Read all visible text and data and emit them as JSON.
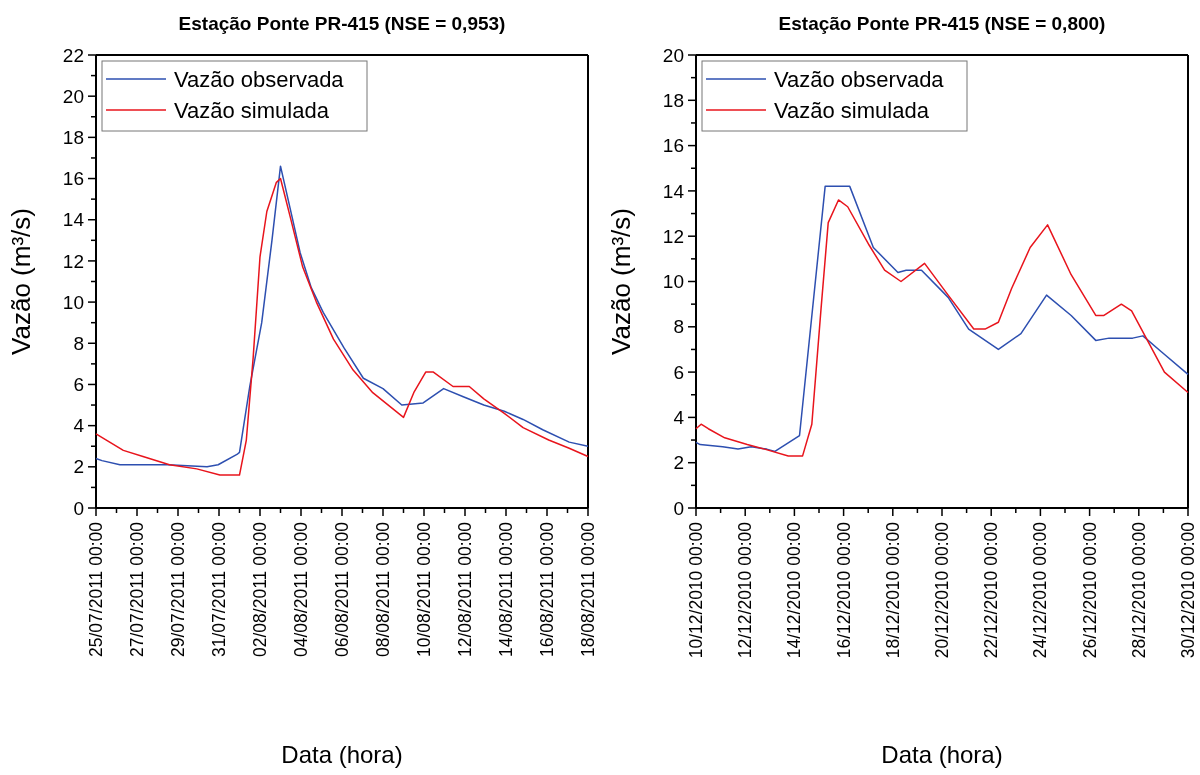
{
  "chart_data": [
    {
      "type": "line",
      "title": "Estação Ponte PR-415 (NSE = 0,953)",
      "xlabel": "Data (hora)",
      "ylabel": "Vazão (m³/s)",
      "legend": "top left",
      "grid": false,
      "xlim": [
        "2011-07-25T00:00",
        "2011-08-18T00:00"
      ],
      "xticks": [
        {
          "value": "2011-07-25T00:00",
          "label": "25/07/2011 00:00"
        },
        {
          "value": "2011-07-26T00:00",
          "label": null
        },
        {
          "value": "2011-07-27T00:00",
          "label": "27/07/2011 00:00"
        },
        {
          "value": "2011-07-28T00:00",
          "label": null
        },
        {
          "value": "2011-07-29T00:00",
          "label": "29/07/2011 00:00"
        },
        {
          "value": "2011-07-30T00:00",
          "label": null
        },
        {
          "value": "2011-07-31T00:00",
          "label": "31/07/2011 00:00"
        },
        {
          "value": "2011-08-01T00:00",
          "label": null
        },
        {
          "value": "2011-08-02T00:00",
          "label": "02/08/2011 00:00"
        },
        {
          "value": "2011-08-03T00:00",
          "label": null
        },
        {
          "value": "2011-08-04T00:00",
          "label": "04/08/2011 00:00"
        },
        {
          "value": "2011-08-05T00:00",
          "label": null
        },
        {
          "value": "2011-08-06T00:00",
          "label": "06/08/2011 00:00"
        },
        {
          "value": "2011-08-07T00:00",
          "label": null
        },
        {
          "value": "2011-08-08T00:00",
          "label": "08/08/2011 00:00"
        },
        {
          "value": "2011-08-09T00:00",
          "label": null
        },
        {
          "value": "2011-08-10T00:00",
          "label": "10/08/2011 00:00"
        },
        {
          "value": "2011-08-11T00:00",
          "label": null
        },
        {
          "value": "2011-08-12T00:00",
          "label": "12/08/2011 00:00"
        },
        {
          "value": "2011-08-13T00:00",
          "label": null
        },
        {
          "value": "2011-08-14T00:00",
          "label": "14/08/2011 00:00"
        },
        {
          "value": "2011-08-15T00:00",
          "label": null
        },
        {
          "value": "2011-08-16T00:00",
          "label": "16/08/2011 00:00"
        },
        {
          "value": "2011-08-17T00:00",
          "label": null
        },
        {
          "value": "2011-08-18T00:00",
          "label": "18/08/2011 00:00"
        }
      ],
      "ylim": [
        0,
        22
      ],
      "yticks": [
        0,
        {
          "value": 1,
          "label": null
        },
        2,
        {
          "value": 3,
          "label": null
        },
        4,
        {
          "value": 5,
          "label": null
        },
        6,
        {
          "value": 7,
          "label": null
        },
        8,
        {
          "value": 9,
          "label": null
        },
        10,
        {
          "value": 11,
          "label": null
        },
        12,
        {
          "value": 13,
          "label": null
        },
        14,
        {
          "value": 15,
          "label": null
        },
        16,
        {
          "value": 17,
          "label": null
        },
        18,
        {
          "value": 19,
          "label": null
        },
        20,
        {
          "value": 21,
          "label": null
        },
        22
      ],
      "series": [
        {
          "name": "Vazão observada",
          "color": "#2d4fb0",
          "x": [
            "2011-07-25T00:00",
            "2011-07-25T07:00",
            "2011-07-26T04:00",
            "2011-07-28T12:00",
            "2011-07-30T10:00",
            "2011-07-30T23:00",
            "2011-07-31T21:00",
            "2011-08-01T00:00",
            "2011-08-01T12:00",
            "2011-08-02T02:00",
            "2011-08-02T14:00",
            "2011-08-03T00:00",
            "2011-08-03T11:00",
            "2011-08-03T23:00",
            "2011-08-04T12:00",
            "2011-08-05T02:00",
            "2011-08-06T02:00",
            "2011-08-07T01:00",
            "2011-08-08T00:00",
            "2011-08-08T22:00",
            "2011-08-09T23:00",
            "2011-08-10T23:00",
            "2011-08-11T22:00",
            "2011-08-12T22:00",
            "2011-08-13T22:00",
            "2011-08-14T20:00",
            "2011-08-15T19:00",
            "2011-08-17T02:00",
            "2011-08-18T00:00"
          ],
          "values": [
            2.4,
            2.3,
            2.1,
            2.1,
            2.0,
            2.1,
            2.6,
            2.7,
            5.9,
            9.0,
            13.0,
            16.6,
            14.6,
            12.4,
            10.7,
            9.5,
            7.8,
            6.3,
            5.8,
            5.0,
            5.1,
            5.8,
            5.4,
            5.0,
            4.7,
            4.3,
            3.8,
            3.2,
            3.0
          ]
        },
        {
          "name": "Vazão simulada",
          "color": "#e8141c",
          "x": [
            "2011-07-25T00:00",
            "2011-07-25T16:00",
            "2011-07-26T08:00",
            "2011-07-27T07:00",
            "2011-07-28T14:00",
            "2011-07-29T22:00",
            "2011-07-31T01:00",
            "2011-08-01T00:00",
            "2011-08-01T08:00",
            "2011-08-01T16:00",
            "2011-08-02T00:00",
            "2011-08-02T08:00",
            "2011-08-02T19:00",
            "2011-08-03T00:00",
            "2011-08-03T11:00",
            "2011-08-04T02:00",
            "2011-08-04T18:00",
            "2011-08-05T14:00",
            "2011-08-06T13:00",
            "2011-08-07T12:00",
            "2011-08-09T00:00",
            "2011-08-09T12:00",
            "2011-08-10T02:00",
            "2011-08-10T11:00",
            "2011-08-11T10:00",
            "2011-08-12T05:00",
            "2011-08-12T22:00",
            "2011-08-13T22:00",
            "2011-08-14T20:00",
            "2011-08-16T02:00",
            "2011-08-17T02:00",
            "2011-08-18T00:00"
          ],
          "values": [
            3.6,
            3.2,
            2.8,
            2.5,
            2.1,
            1.9,
            1.6,
            1.6,
            3.3,
            7.3,
            12.2,
            14.4,
            15.8,
            16.0,
            14.2,
            11.7,
            10.0,
            8.2,
            6.7,
            5.6,
            4.4,
            5.6,
            6.6,
            6.6,
            5.9,
            5.9,
            5.3,
            4.6,
            3.9,
            3.3,
            2.9,
            2.5
          ]
        }
      ]
    },
    {
      "type": "line",
      "title": "Estação Ponte PR-415 (NSE = 0,800)",
      "xlabel": "Data (hora)",
      "ylabel": "Vazão (m³/s)",
      "legend": "top left",
      "grid": false,
      "xlim": [
        "2010-12-10T00:00",
        "2010-12-30T00:00"
      ],
      "xticks": [
        {
          "value": "2010-12-10T00:00",
          "label": "10/12/2010 00:00"
        },
        {
          "value": "2010-12-11T00:00",
          "label": null
        },
        {
          "value": "2010-12-12T00:00",
          "label": "12/12/2010 00:00"
        },
        {
          "value": "2010-12-13T00:00",
          "label": null
        },
        {
          "value": "2010-12-14T00:00",
          "label": "14/12/2010 00:00"
        },
        {
          "value": "2010-12-15T00:00",
          "label": null
        },
        {
          "value": "2010-12-16T00:00",
          "label": "16/12/2010 00:00"
        },
        {
          "value": "2010-12-17T00:00",
          "label": null
        },
        {
          "value": "2010-12-18T00:00",
          "label": "18/12/2010 00:00"
        },
        {
          "value": "2010-12-19T00:00",
          "label": null
        },
        {
          "value": "2010-12-20T00:00",
          "label": "20/12/2010 00:00"
        },
        {
          "value": "2010-12-21T00:00",
          "label": null
        },
        {
          "value": "2010-12-22T00:00",
          "label": "22/12/2010 00:00"
        },
        {
          "value": "2010-12-23T00:00",
          "label": null
        },
        {
          "value": "2010-12-24T00:00",
          "label": "24/12/2010 00:00"
        },
        {
          "value": "2010-12-25T00:00",
          "label": null
        },
        {
          "value": "2010-12-26T00:00",
          "label": "26/12/2010 00:00"
        },
        {
          "value": "2010-12-27T00:00",
          "label": null
        },
        {
          "value": "2010-12-28T00:00",
          "label": "28/12/2010 00:00"
        },
        {
          "value": "2010-12-29T00:00",
          "label": null
        },
        {
          "value": "2010-12-30T00:00",
          "label": "30/12/2010 00:00"
        }
      ],
      "ylim": [
        0,
        20
      ],
      "yticks": [
        0,
        {
          "value": 1,
          "label": null
        },
        2,
        {
          "value": 3,
          "label": null
        },
        4,
        {
          "value": 5,
          "label": null
        },
        6,
        {
          "value": 7,
          "label": null
        },
        8,
        {
          "value": 9,
          "label": null
        },
        10,
        {
          "value": 11,
          "label": null
        },
        12,
        {
          "value": 13,
          "label": null
        },
        14,
        {
          "value": 15,
          "label": null
        },
        16,
        {
          "value": 17,
          "label": null
        },
        18,
        {
          "value": 19,
          "label": null
        },
        20
      ],
      "series": [
        {
          "name": "Vazão observada",
          "color": "#2d4fb0",
          "x": [
            "2010-12-10T00:00",
            "2010-12-10T04:00",
            "2010-12-11T02:00",
            "2010-12-11T17:00",
            "2010-12-12T06:00",
            "2010-12-12T21:00",
            "2010-12-13T05:00",
            "2010-12-14T05:00",
            "2010-12-15T06:00",
            "2010-12-16T06:00",
            "2010-12-17T05:00",
            "2010-12-18T05:00",
            "2010-12-18T13:00",
            "2010-12-19T04:00",
            "2010-12-20T06:00",
            "2010-12-21T02:00",
            "2010-12-22T07:00",
            "2010-12-23T05:00",
            "2010-12-24T06:00",
            "2010-12-25T06:00",
            "2010-12-26T06:00",
            "2010-12-26T19:00",
            "2010-12-27T18:00",
            "2010-12-28T04:00",
            "2010-12-28T22:00",
            "2010-12-30T00:00"
          ],
          "values": [
            2.9,
            2.8,
            2.7,
            2.6,
            2.7,
            2.6,
            2.5,
            3.2,
            14.2,
            14.2,
            11.5,
            10.4,
            10.5,
            10.5,
            9.3,
            7.9,
            7.0,
            7.7,
            9.4,
            8.5,
            7.4,
            7.5,
            7.5,
            7.6,
            6.9,
            5.9
          ]
        },
        {
          "name": "Vazão simulada",
          "color": "#e8141c",
          "x": [
            "2010-12-10T00:00",
            "2010-12-10T05:00",
            "2010-12-10T12:00",
            "2010-12-11T04:00",
            "2010-12-12T02:00",
            "2010-12-12T19:00",
            "2010-12-13T18:00",
            "2010-12-14T08:00",
            "2010-12-14T17:00",
            "2010-12-15T02:00",
            "2010-12-15T09:00",
            "2010-12-15T19:00",
            "2010-12-16T04:00",
            "2010-12-17T01:00",
            "2010-12-17T16:00",
            "2010-12-18T08:00",
            "2010-12-19T07:00",
            "2010-12-20T06:00",
            "2010-12-21T07:00",
            "2010-12-21T18:00",
            "2010-12-22T07:00",
            "2010-12-22T20:00",
            "2010-12-23T14:00",
            "2010-12-24T07:00",
            "2010-12-25T06:00",
            "2010-12-26T06:00",
            "2010-12-26T14:00",
            "2010-12-27T07:00",
            "2010-12-27T17:00",
            "2010-12-29T01:00",
            "2010-12-30T00:00"
          ],
          "values": [
            3.5,
            3.7,
            3.5,
            3.1,
            2.8,
            2.6,
            2.3,
            2.3,
            3.7,
            8.8,
            12.6,
            13.6,
            13.3,
            11.6,
            10.5,
            10.0,
            10.8,
            9.4,
            7.9,
            7.9,
            8.2,
            9.7,
            11.5,
            12.5,
            10.3,
            8.5,
            8.5,
            9.0,
            8.7,
            6.0,
            5.1
          ]
        }
      ]
    }
  ]
}
